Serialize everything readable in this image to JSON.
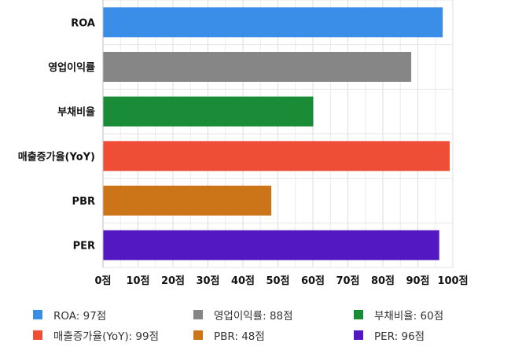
{
  "chart_data": {
    "type": "bar",
    "orientation": "horizontal",
    "categories": [
      "ROA",
      "영업이익률",
      "부채비율",
      "매출증가율(YoY)",
      "PBR",
      "PER"
    ],
    "values": [
      97,
      88,
      60,
      99,
      48,
      96
    ],
    "colors": [
      "#3b8ee8",
      "#868686",
      "#1a8c38",
      "#ee4d36",
      "#cc7418",
      "#5318c2"
    ],
    "xlim": [
      0,
      100
    ],
    "x_ticks": [
      0,
      10,
      20,
      30,
      40,
      50,
      60,
      70,
      80,
      90,
      100
    ],
    "x_tick_labels": [
      "0점",
      "10점",
      "20점",
      "30점",
      "40점",
      "50점",
      "60점",
      "70점",
      "80점",
      "90점",
      "100점"
    ],
    "grid": true,
    "legend_position": "bottom",
    "legend": [
      "ROA: 97점",
      "영업이익률: 88점",
      "부채비율: 60점",
      "매출증가율(YoY): 99점",
      "PBR: 48점",
      "PER: 96점"
    ]
  }
}
